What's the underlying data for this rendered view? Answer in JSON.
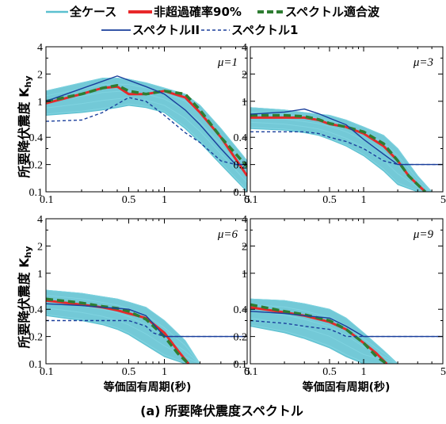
{
  "legend": {
    "all_cases": "全ケース",
    "non_exceed": "非超過確率90%",
    "fit": "スペクトル適合波",
    "spec2": "スペクトルII",
    "spec1": "スペクトル1"
  },
  "ylabel": "所要降伏震度 K",
  "ylabel_sub": "hy",
  "xlabel": "等価固有周期(秒)",
  "caption": "(a) 所要降伏震度スペクトル",
  "colors": {
    "all_cases": "#5bc0d0",
    "non_exceed": "#e8282a",
    "fit": "#2e7d32",
    "spec2": "#1a3f9c",
    "spec1": "#1a3f9c"
  },
  "chart_data": [
    {
      "type": "line",
      "panel_label": "μ=1",
      "mu": "1",
      "xscale": "log",
      "yscale": "log",
      "xlim": [
        0.1,
        5
      ],
      "ylim": [
        0.1,
        4
      ],
      "xticks": [
        "0.1",
        "0.5",
        "1",
        "5"
      ],
      "yticks": [
        "0.1",
        "0.2",
        "0.4",
        "1",
        "2",
        "4"
      ],
      "band": {
        "name": "全ケース",
        "x": [
          0.1,
          0.2,
          0.3,
          0.4,
          0.5,
          0.7,
          1.0,
          1.5,
          2.0,
          3.0,
          5.0
        ],
        "upper": [
          1.3,
          1.6,
          1.8,
          1.8,
          1.75,
          1.6,
          1.4,
          1.2,
          0.9,
          0.5,
          0.22
        ],
        "lower": [
          0.7,
          0.75,
          0.8,
          0.85,
          0.9,
          0.85,
          0.75,
          0.5,
          0.35,
          0.2,
          0.1
        ]
      },
      "series": [
        {
          "name": "非超過確率90%",
          "x": [
            0.1,
            0.2,
            0.3,
            0.4,
            0.5,
            0.7,
            1.0,
            1.5,
            2.0,
            3.0,
            5.0
          ],
          "y": [
            0.95,
            1.2,
            1.4,
            1.45,
            1.2,
            1.2,
            1.3,
            1.1,
            0.75,
            0.4,
            0.15
          ]
        },
        {
          "name": "スペクトル適合波",
          "x": [
            0.1,
            0.2,
            0.3,
            0.4,
            0.5,
            0.7,
            1.0,
            1.5,
            2.0,
            3.0,
            5.0
          ],
          "y": [
            1.0,
            1.2,
            1.4,
            1.5,
            1.3,
            1.2,
            1.3,
            1.2,
            0.8,
            0.4,
            0.19
          ]
        },
        {
          "name": "スペクトルII",
          "x": [
            0.1,
            0.4,
            0.7,
            1.0,
            1.5,
            2.0,
            3.0,
            4.0,
            5.0
          ],
          "y": [
            1.0,
            1.9,
            1.45,
            1.2,
            0.8,
            0.55,
            0.3,
            0.2,
            0.2
          ]
        },
        {
          "name": "スペクトル1",
          "x": [
            0.1,
            0.2,
            0.3,
            0.5,
            0.7,
            1.0,
            1.5,
            2.0,
            3.0,
            4.0,
            5.0
          ],
          "y": [
            0.6,
            0.62,
            0.75,
            1.1,
            1.0,
            0.7,
            0.45,
            0.35,
            0.22,
            0.2,
            0.2
          ]
        }
      ]
    },
    {
      "type": "line",
      "panel_label": "μ=3",
      "mu": "3",
      "xscale": "log",
      "yscale": "log",
      "xlim": [
        0.1,
        5
      ],
      "ylim": [
        0.1,
        4
      ],
      "xticks": [
        "0.1",
        "0.5",
        "1",
        "5"
      ],
      "yticks": [
        "0.1",
        "0.2",
        "0.4",
        "1",
        "2",
        "4"
      ],
      "band": {
        "name": "全ケース",
        "x": [
          0.1,
          0.2,
          0.3,
          0.4,
          0.5,
          0.7,
          1.0,
          1.5,
          2.0,
          3.0,
          4.0
        ],
        "upper": [
          0.85,
          0.8,
          0.75,
          0.72,
          0.7,
          0.62,
          0.52,
          0.42,
          0.3,
          0.15,
          0.1
        ],
        "lower": [
          0.5,
          0.48,
          0.45,
          0.42,
          0.38,
          0.32,
          0.25,
          0.17,
          0.12,
          0.1,
          0.1
        ]
      },
      "series": [
        {
          "name": "非超過確率90%",
          "x": [
            0.1,
            0.2,
            0.3,
            0.4,
            0.5,
            0.7,
            1.0,
            1.5,
            2.0,
            2.5,
            3.0,
            3.5
          ],
          "y": [
            0.66,
            0.66,
            0.66,
            0.62,
            0.56,
            0.52,
            0.44,
            0.32,
            0.22,
            0.15,
            0.12,
            0.1
          ]
        },
        {
          "name": "スペクトル適合波",
          "x": [
            0.1,
            0.2,
            0.3,
            0.4,
            0.5,
            0.7,
            1.0,
            1.5,
            2.0,
            2.5,
            3.0,
            3.5
          ],
          "y": [
            0.7,
            0.7,
            0.68,
            0.63,
            0.57,
            0.52,
            0.46,
            0.34,
            0.22,
            0.15,
            0.12,
            0.1
          ]
        },
        {
          "name": "スペクトルII",
          "x": [
            0.1,
            0.2,
            0.3,
            0.4,
            0.5,
            0.7,
            1.0,
            1.5,
            2.0,
            3.0,
            5.0
          ],
          "y": [
            0.72,
            0.76,
            0.82,
            0.73,
            0.65,
            0.55,
            0.38,
            0.26,
            0.2,
            0.2,
            0.2
          ]
        },
        {
          "name": "スペクトル1",
          "x": [
            0.1,
            0.2,
            0.3,
            0.4,
            0.5,
            0.7,
            1.0,
            1.5,
            2.0,
            3.0,
            5.0
          ],
          "y": [
            0.46,
            0.46,
            0.46,
            0.44,
            0.4,
            0.36,
            0.3,
            0.22,
            0.2,
            0.2,
            0.2
          ]
        }
      ]
    },
    {
      "type": "line",
      "panel_label": "μ=6",
      "mu": "6",
      "xscale": "log",
      "yscale": "log",
      "xlim": [
        0.1,
        5
      ],
      "ylim": [
        0.1,
        4
      ],
      "xticks": [
        "0.1",
        "0.5",
        "1",
        "5"
      ],
      "yticks": [
        "0.1",
        "0.2",
        "0.4",
        "1",
        "2",
        "4"
      ],
      "band": {
        "name": "全ケース",
        "x": [
          0.1,
          0.2,
          0.3,
          0.4,
          0.5,
          0.7,
          1.0,
          1.5,
          2.0
        ],
        "upper": [
          0.65,
          0.6,
          0.55,
          0.52,
          0.48,
          0.42,
          0.3,
          0.18,
          0.1
        ],
        "lower": [
          0.34,
          0.3,
          0.27,
          0.24,
          0.21,
          0.16,
          0.12,
          0.1,
          0.1
        ]
      },
      "series": [
        {
          "name": "非超過確率90%",
          "x": [
            0.1,
            0.2,
            0.3,
            0.4,
            0.5,
            0.7,
            1.0,
            1.3,
            1.6
          ],
          "y": [
            0.5,
            0.45,
            0.42,
            0.39,
            0.36,
            0.32,
            0.22,
            0.14,
            0.1
          ]
        },
        {
          "name": "スペクトル適合波",
          "x": [
            0.1,
            0.2,
            0.3,
            0.4,
            0.5,
            0.7,
            1.0,
            1.3,
            1.6
          ],
          "y": [
            0.52,
            0.47,
            0.43,
            0.41,
            0.38,
            0.31,
            0.2,
            0.13,
            0.1
          ]
        },
        {
          "name": "スペクトルII",
          "x": [
            0.1,
            0.2,
            0.3,
            0.4,
            0.5,
            0.7,
            0.8,
            1.0,
            2.0,
            5.0
          ],
          "y": [
            0.46,
            0.44,
            0.42,
            0.41,
            0.4,
            0.34,
            0.28,
            0.2,
            0.2,
            0.2
          ]
        },
        {
          "name": "スペクトル1",
          "x": [
            0.1,
            0.2,
            0.3,
            0.4,
            0.5,
            0.7,
            0.8,
            1.0,
            5.0
          ],
          "y": [
            0.3,
            0.3,
            0.3,
            0.3,
            0.3,
            0.26,
            0.22,
            0.2,
            0.2
          ]
        }
      ]
    },
    {
      "type": "line",
      "panel_label": "μ=9",
      "mu": "9",
      "xscale": "log",
      "yscale": "log",
      "xlim": [
        0.1,
        5
      ],
      "ylim": [
        0.1,
        4
      ],
      "xticks": [
        "0.1",
        "0.5",
        "1",
        "5"
      ],
      "yticks": [
        "0.1",
        "0.2",
        "0.4",
        "1",
        "2",
        "4"
      ],
      "band": {
        "name": "全ケース",
        "x": [
          0.1,
          0.2,
          0.3,
          0.5,
          0.7,
          1.0,
          1.5,
          2.0
        ],
        "upper": [
          0.52,
          0.5,
          0.46,
          0.4,
          0.32,
          0.22,
          0.14,
          0.1
        ],
        "lower": [
          0.26,
          0.22,
          0.19,
          0.15,
          0.12,
          0.1,
          0.1,
          0.1
        ]
      },
      "series": [
        {
          "name": "非超過確率90%",
          "x": [
            0.1,
            0.2,
            0.3,
            0.5,
            0.7,
            1.0,
            1.3,
            1.6
          ],
          "y": [
            0.42,
            0.37,
            0.34,
            0.29,
            0.24,
            0.17,
            0.13,
            0.1
          ]
        },
        {
          "name": "スペクトル適合波",
          "x": [
            0.1,
            0.2,
            0.3,
            0.5,
            0.7,
            1.0,
            1.3,
            1.6
          ],
          "y": [
            0.45,
            0.38,
            0.35,
            0.3,
            0.24,
            0.17,
            0.12,
            0.1
          ]
        },
        {
          "name": "スペクトルII",
          "x": [
            0.1,
            0.2,
            0.3,
            0.5,
            0.7,
            1.0,
            5.0
          ],
          "y": [
            0.38,
            0.36,
            0.34,
            0.32,
            0.26,
            0.2,
            0.2
          ]
        },
        {
          "name": "スペクトル1",
          "x": [
            0.1,
            0.2,
            0.3,
            0.5,
            0.6,
            0.7,
            5.0
          ],
          "y": [
            0.3,
            0.28,
            0.26,
            0.24,
            0.22,
            0.2,
            0.2
          ]
        }
      ]
    }
  ]
}
